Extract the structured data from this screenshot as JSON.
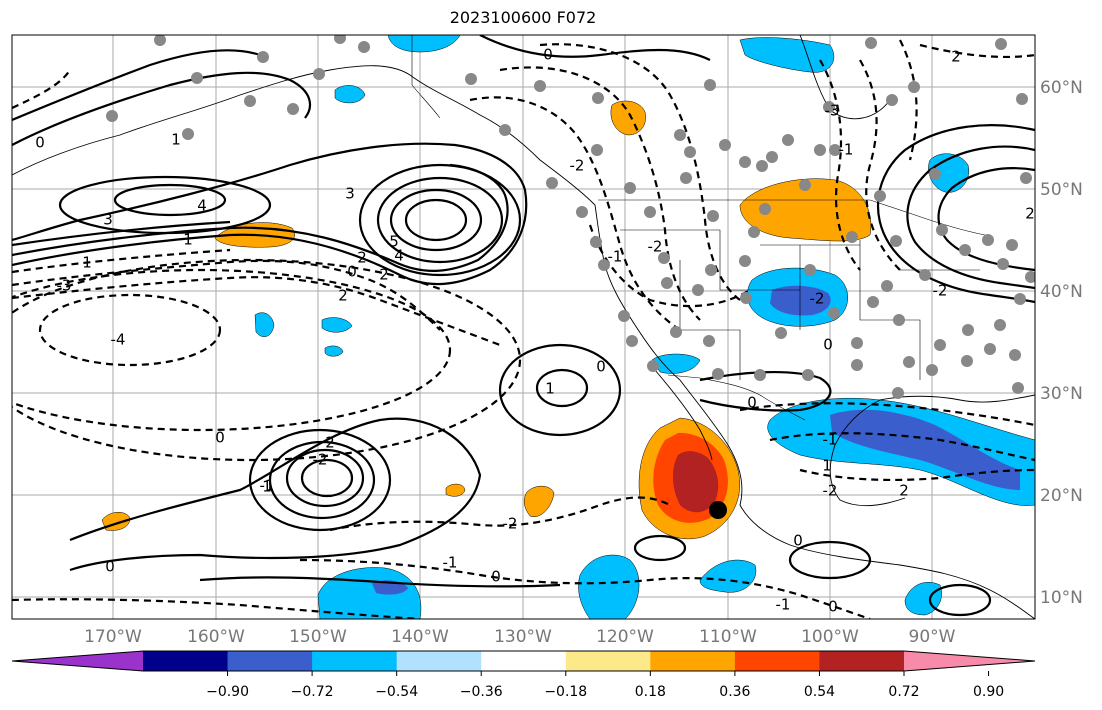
{
  "title": "2023100600 F072",
  "map": {
    "extent_lon": [
      -180,
      -80
    ],
    "extent_lat": [
      8,
      65
    ],
    "lon_ticks": [
      "170°W",
      "160°W",
      "150°W",
      "140°W",
      "130°W",
      "120°W",
      "110°W",
      "100°W",
      "90°W"
    ],
    "lat_ticks": [
      "60°N",
      "50°N",
      "40°N",
      "30°N",
      "20°N",
      "10°N"
    ],
    "grid": true,
    "marker": {
      "type": "storm-center",
      "color": "#000000"
    }
  },
  "contour_labels": [
    "0",
    "1",
    "3",
    "4",
    "1",
    "3",
    "5",
    "4",
    "2",
    "2",
    "0",
    "-3",
    "2",
    "1",
    "-4",
    "0",
    "-2",
    "-1",
    "2",
    "-2",
    "1",
    "-1",
    "0",
    "0",
    "-2",
    "-1",
    "0",
    "2",
    "-3",
    "-1",
    "-2",
    "0",
    "0",
    "-2",
    "-1",
    "1",
    "2",
    "-2",
    "0",
    "2",
    "-1",
    "0",
    "0",
    "1",
    "-2"
  ],
  "colorbar": {
    "colors": [
      "#9933cc",
      "#00008b",
      "#3a5fcd",
      "#00bfff",
      "#b0e2ff",
      "#ffffff",
      "#fce98a",
      "#ffa500",
      "#ff4500",
      "#b22222",
      "#f88aaa"
    ],
    "ticks": [
      "−0.90",
      "−0.72",
      "−0.54",
      "−0.36",
      "−0.18",
      "0.18",
      "0.36",
      "0.54",
      "0.72",
      "0.90"
    ]
  }
}
